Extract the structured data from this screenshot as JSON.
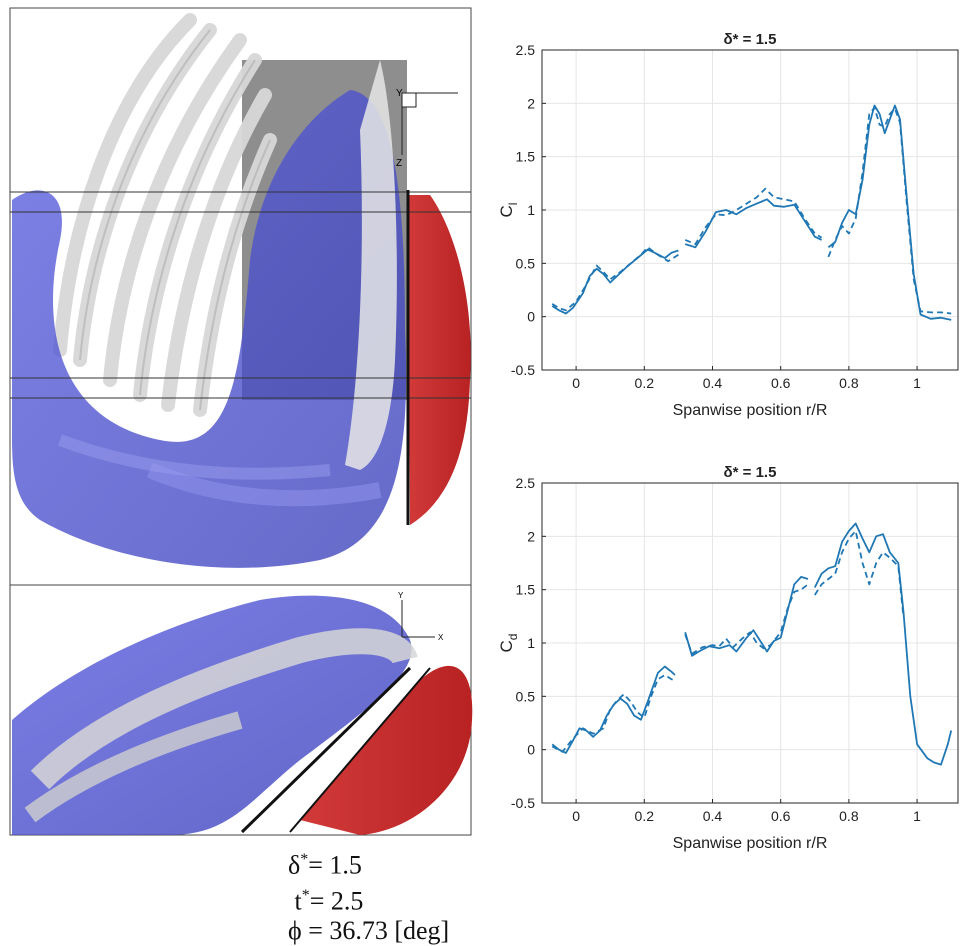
{
  "params": {
    "delta_sym": "δ",
    "delta_sup": "*",
    "delta_val": "= 1.5",
    "t_sym": "t",
    "t_sup": "*",
    "t_val": "= 2.5",
    "phi_sym": "ϕ",
    "phi_val": "= 36.73 [deg]"
  },
  "axis_triad_top": {
    "y": "Y",
    "z": "Z"
  },
  "axis_triad_bottom": {
    "y": "Y",
    "x": "X"
  },
  "chart_data": [
    {
      "type": "line",
      "title": "δ* = 1.5",
      "xlabel": "Spanwise position r/R",
      "ylabel_main": "C",
      "ylabel_sub": "l",
      "xlim": [
        -0.1,
        1.12
      ],
      "ylim": [
        -0.5,
        2.5
      ],
      "xticks": [
        0,
        0.2,
        0.4,
        0.6,
        0.8,
        1
      ],
      "xtick_labels": [
        "0",
        "0.2",
        "0.4",
        "0.6",
        "0.8",
        "1"
      ],
      "yticks": [
        -0.5,
        0,
        0.5,
        1,
        1.5,
        2,
        2.5
      ],
      "ytick_labels": [
        "-0.5",
        "0",
        "0.5",
        "1",
        "1.5",
        "2",
        "2.5"
      ],
      "grid": true,
      "color": "#1f77b4",
      "series": [
        {
          "style": "solid",
          "segments": [
            [
              [
                -0.07,
                0.1
              ],
              [
                -0.05,
                0.06
              ],
              [
                -0.03,
                0.03
              ],
              [
                -0.01,
                0.08
              ],
              [
                0.02,
                0.22
              ],
              [
                0.04,
                0.38
              ],
              [
                0.06,
                0.45
              ],
              [
                0.08,
                0.4
              ],
              [
                0.1,
                0.32
              ],
              [
                0.12,
                0.38
              ],
              [
                0.15,
                0.47
              ],
              [
                0.18,
                0.55
              ],
              [
                0.21,
                0.63
              ],
              [
                0.23,
                0.6
              ],
              [
                0.26,
                0.55
              ],
              [
                0.28,
                0.6
              ],
              [
                0.3,
                0.62
              ]
            ],
            [
              [
                0.32,
                0.68
              ],
              [
                0.35,
                0.65
              ],
              [
                0.38,
                0.8
              ],
              [
                0.41,
                0.98
              ],
              [
                0.44,
                1.0
              ],
              [
                0.47,
                0.96
              ],
              [
                0.5,
                1.02
              ],
              [
                0.53,
                1.06
              ],
              [
                0.56,
                1.1
              ],
              [
                0.58,
                1.04
              ],
              [
                0.61,
                1.03
              ],
              [
                0.64,
                1.05
              ],
              [
                0.67,
                0.9
              ],
              [
                0.7,
                0.75
              ],
              [
                0.72,
                0.72
              ]
            ],
            [
              [
                0.74,
                0.65
              ],
              [
                0.76,
                0.7
              ],
              [
                0.78,
                0.88
              ],
              [
                0.8,
                1.0
              ],
              [
                0.82,
                0.96
              ],
              [
                0.84,
                1.28
              ],
              [
                0.86,
                1.8
              ],
              [
                0.875,
                1.98
              ],
              [
                0.89,
                1.9
              ],
              [
                0.905,
                1.72
              ],
              [
                0.92,
                1.85
              ],
              [
                0.935,
                1.98
              ],
              [
                0.95,
                1.85
              ],
              [
                0.97,
                1.1
              ],
              [
                0.99,
                0.4
              ],
              [
                1.01,
                0.02
              ],
              [
                1.04,
                -0.02
              ],
              [
                1.07,
                -0.01
              ],
              [
                1.1,
                -0.03
              ]
            ]
          ]
        },
        {
          "style": "dashed",
          "segments": [
            [
              [
                -0.07,
                0.12
              ],
              [
                -0.05,
                0.08
              ],
              [
                -0.03,
                0.06
              ],
              [
                0.0,
                0.14
              ],
              [
                0.03,
                0.3
              ],
              [
                0.06,
                0.48
              ],
              [
                0.08,
                0.42
              ],
              [
                0.1,
                0.35
              ],
              [
                0.13,
                0.42
              ],
              [
                0.16,
                0.5
              ],
              [
                0.19,
                0.58
              ],
              [
                0.21,
                0.65
              ],
              [
                0.24,
                0.58
              ],
              [
                0.27,
                0.52
              ],
              [
                0.3,
                0.58
              ]
            ],
            [
              [
                0.32,
                0.72
              ],
              [
                0.35,
                0.68
              ],
              [
                0.38,
                0.84
              ],
              [
                0.41,
                0.96
              ],
              [
                0.44,
                0.95
              ],
              [
                0.47,
                1.0
              ],
              [
                0.5,
                1.06
              ],
              [
                0.53,
                1.12
              ],
              [
                0.555,
                1.2
              ],
              [
                0.58,
                1.12
              ],
              [
                0.61,
                1.1
              ],
              [
                0.64,
                1.08
              ],
              [
                0.67,
                0.92
              ],
              [
                0.7,
                0.78
              ],
              [
                0.72,
                0.74
              ]
            ],
            [
              [
                0.74,
                0.56
              ],
              [
                0.76,
                0.72
              ],
              [
                0.78,
                0.85
              ],
              [
                0.8,
                0.78
              ],
              [
                0.82,
                0.92
              ],
              [
                0.84,
                1.35
              ],
              [
                0.86,
                1.9
              ],
              [
                0.875,
                1.96
              ],
              [
                0.89,
                1.8
              ],
              [
                0.905,
                1.78
              ],
              [
                0.92,
                1.9
              ],
              [
                0.935,
                1.95
              ],
              [
                0.95,
                1.82
              ],
              [
                0.97,
                1.05
              ],
              [
                0.99,
                0.35
              ],
              [
                1.01,
                0.05
              ],
              [
                1.04,
                0.04
              ],
              [
                1.07,
                0.04
              ],
              [
                1.1,
                0.03
              ]
            ]
          ]
        }
      ]
    },
    {
      "type": "line",
      "title": "δ* = 1.5",
      "xlabel": "Spanwise position r/R",
      "ylabel_main": "C",
      "ylabel_sub": "d",
      "xlim": [
        -0.1,
        1.12
      ],
      "ylim": [
        -0.5,
        2.5
      ],
      "xticks": [
        0,
        0.2,
        0.4,
        0.6,
        0.8,
        1
      ],
      "xtick_labels": [
        "0",
        "0.2",
        "0.4",
        "0.6",
        "0.8",
        "1"
      ],
      "yticks": [
        -0.5,
        0,
        0.5,
        1,
        1.5,
        2,
        2.5
      ],
      "ytick_labels": [
        "-0.5",
        "0",
        "0.5",
        "1",
        "1.5",
        "2",
        "2.5"
      ],
      "grid": true,
      "color": "#1f77b4",
      "series": [
        {
          "style": "solid",
          "segments": [
            [
              [
                -0.07,
                0.05
              ],
              [
                -0.05,
                0.0
              ],
              [
                -0.03,
                -0.03
              ],
              [
                -0.01,
                0.08
              ],
              [
                0.01,
                0.2
              ],
              [
                0.03,
                0.18
              ],
              [
                0.05,
                0.12
              ],
              [
                0.07,
                0.18
              ],
              [
                0.09,
                0.32
              ],
              [
                0.11,
                0.42
              ],
              [
                0.13,
                0.48
              ],
              [
                0.15,
                0.43
              ],
              [
                0.17,
                0.32
              ],
              [
                0.19,
                0.28
              ],
              [
                0.21,
                0.45
              ],
              [
                0.24,
                0.72
              ],
              [
                0.26,
                0.78
              ],
              [
                0.28,
                0.73
              ],
              [
                0.29,
                0.7
              ]
            ],
            [
              [
                0.32,
                1.1
              ],
              [
                0.34,
                0.88
              ],
              [
                0.36,
                0.92
              ],
              [
                0.39,
                0.97
              ],
              [
                0.42,
                0.95
              ],
              [
                0.45,
                0.98
              ],
              [
                0.47,
                0.92
              ],
              [
                0.5,
                1.05
              ],
              [
                0.52,
                1.12
              ],
              [
                0.54,
                1.02
              ],
              [
                0.56,
                0.92
              ],
              [
                0.58,
                1.02
              ],
              [
                0.6,
                1.05
              ],
              [
                0.62,
                1.3
              ],
              [
                0.64,
                1.55
              ],
              [
                0.66,
                1.62
              ],
              [
                0.68,
                1.6
              ]
            ],
            [
              [
                0.7,
                1.52
              ],
              [
                0.72,
                1.65
              ],
              [
                0.74,
                1.7
              ],
              [
                0.76,
                1.72
              ],
              [
                0.78,
                1.95
              ],
              [
                0.8,
                2.05
              ],
              [
                0.82,
                2.12
              ],
              [
                0.84,
                1.98
              ],
              [
                0.86,
                1.85
              ],
              [
                0.88,
                2.0
              ],
              [
                0.9,
                2.02
              ],
              [
                0.92,
                1.85
              ],
              [
                0.945,
                1.75
              ],
              [
                0.96,
                1.3
              ],
              [
                0.98,
                0.5
              ],
              [
                1.0,
                0.05
              ],
              [
                1.03,
                -0.08
              ],
              [
                1.05,
                -0.12
              ],
              [
                1.07,
                -0.14
              ],
              [
                1.09,
                0.05
              ],
              [
                1.1,
                0.18
              ]
            ]
          ]
        },
        {
          "style": "dashed",
          "segments": [
            [
              [
                -0.07,
                0.03
              ],
              [
                -0.04,
                -0.02
              ],
              [
                -0.01,
                0.1
              ],
              [
                0.02,
                0.2
              ],
              [
                0.05,
                0.15
              ],
              [
                0.08,
                0.2
              ],
              [
                0.1,
                0.38
              ],
              [
                0.12,
                0.46
              ],
              [
                0.14,
                0.52
              ],
              [
                0.16,
                0.45
              ],
              [
                0.18,
                0.35
              ],
              [
                0.2,
                0.3
              ],
              [
                0.22,
                0.5
              ],
              [
                0.24,
                0.66
              ],
              [
                0.26,
                0.7
              ],
              [
                0.28,
                0.66
              ],
              [
                0.29,
                0.65
              ]
            ],
            [
              [
                0.32,
                1.08
              ],
              [
                0.34,
                0.9
              ],
              [
                0.37,
                0.96
              ],
              [
                0.4,
                0.98
              ],
              [
                0.42,
                0.97
              ],
              [
                0.44,
                1.04
              ],
              [
                0.46,
                0.96
              ],
              [
                0.49,
                1.05
              ],
              [
                0.51,
                1.1
              ],
              [
                0.53,
                1.0
              ],
              [
                0.55,
                0.95
              ],
              [
                0.57,
                0.98
              ],
              [
                0.6,
                1.1
              ],
              [
                0.62,
                1.32
              ],
              [
                0.64,
                1.48
              ],
              [
                0.66,
                1.5
              ],
              [
                0.68,
                1.55
              ]
            ],
            [
              [
                0.7,
                1.45
              ],
              [
                0.72,
                1.55
              ],
              [
                0.74,
                1.6
              ],
              [
                0.76,
                1.65
              ],
              [
                0.78,
                1.85
              ],
              [
                0.8,
                1.98
              ],
              [
                0.82,
                2.05
              ],
              [
                0.84,
                1.75
              ],
              [
                0.86,
                1.55
              ],
              [
                0.88,
                1.75
              ],
              [
                0.9,
                1.85
              ],
              [
                0.92,
                1.8
              ],
              [
                0.945,
                1.72
              ],
              [
                0.96,
                1.25
              ]
            ]
          ]
        }
      ]
    }
  ]
}
